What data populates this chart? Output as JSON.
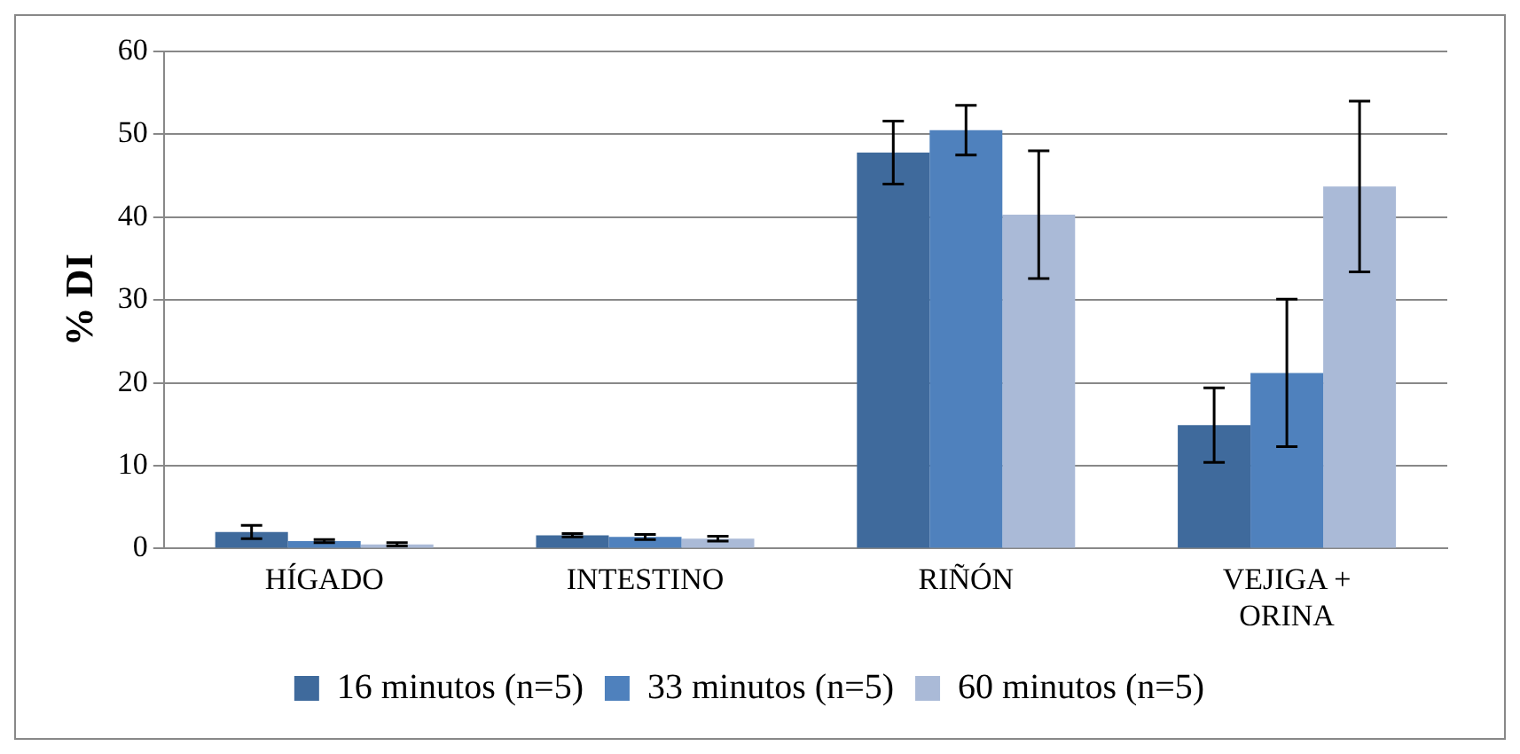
{
  "chart_data": {
    "type": "bar",
    "ylabel": "% DI",
    "categories": [
      "HÍGADO",
      "INTESTINO",
      "RIÑÓN",
      "VEJIGA + ORINA"
    ],
    "series": [
      {
        "name": "16 minutos (n=5)",
        "color": "#3f6a9c",
        "values": [
          2,
          1.6,
          47.8,
          14.9
        ],
        "errors": [
          0.8,
          0.2,
          3.8,
          4.5
        ]
      },
      {
        "name": "33 minutos (n=5)",
        "color": "#4f81bd",
        "values": [
          0.9,
          1.4,
          50.5,
          21.2
        ],
        "errors": [
          0.2,
          0.3,
          3,
          8.9
        ]
      },
      {
        "name": "60 minutos (n=5)",
        "color": "#aabad7",
        "values": [
          0.5,
          1.2,
          40.3,
          43.7
        ],
        "errors": [
          0.2,
          0.3,
          7.7,
          10.3
        ]
      }
    ],
    "ylim": [
      0,
      60
    ],
    "yticks": [
      0,
      10,
      20,
      30,
      40,
      50,
      60
    ],
    "grid": "y",
    "legend": "bottom"
  }
}
